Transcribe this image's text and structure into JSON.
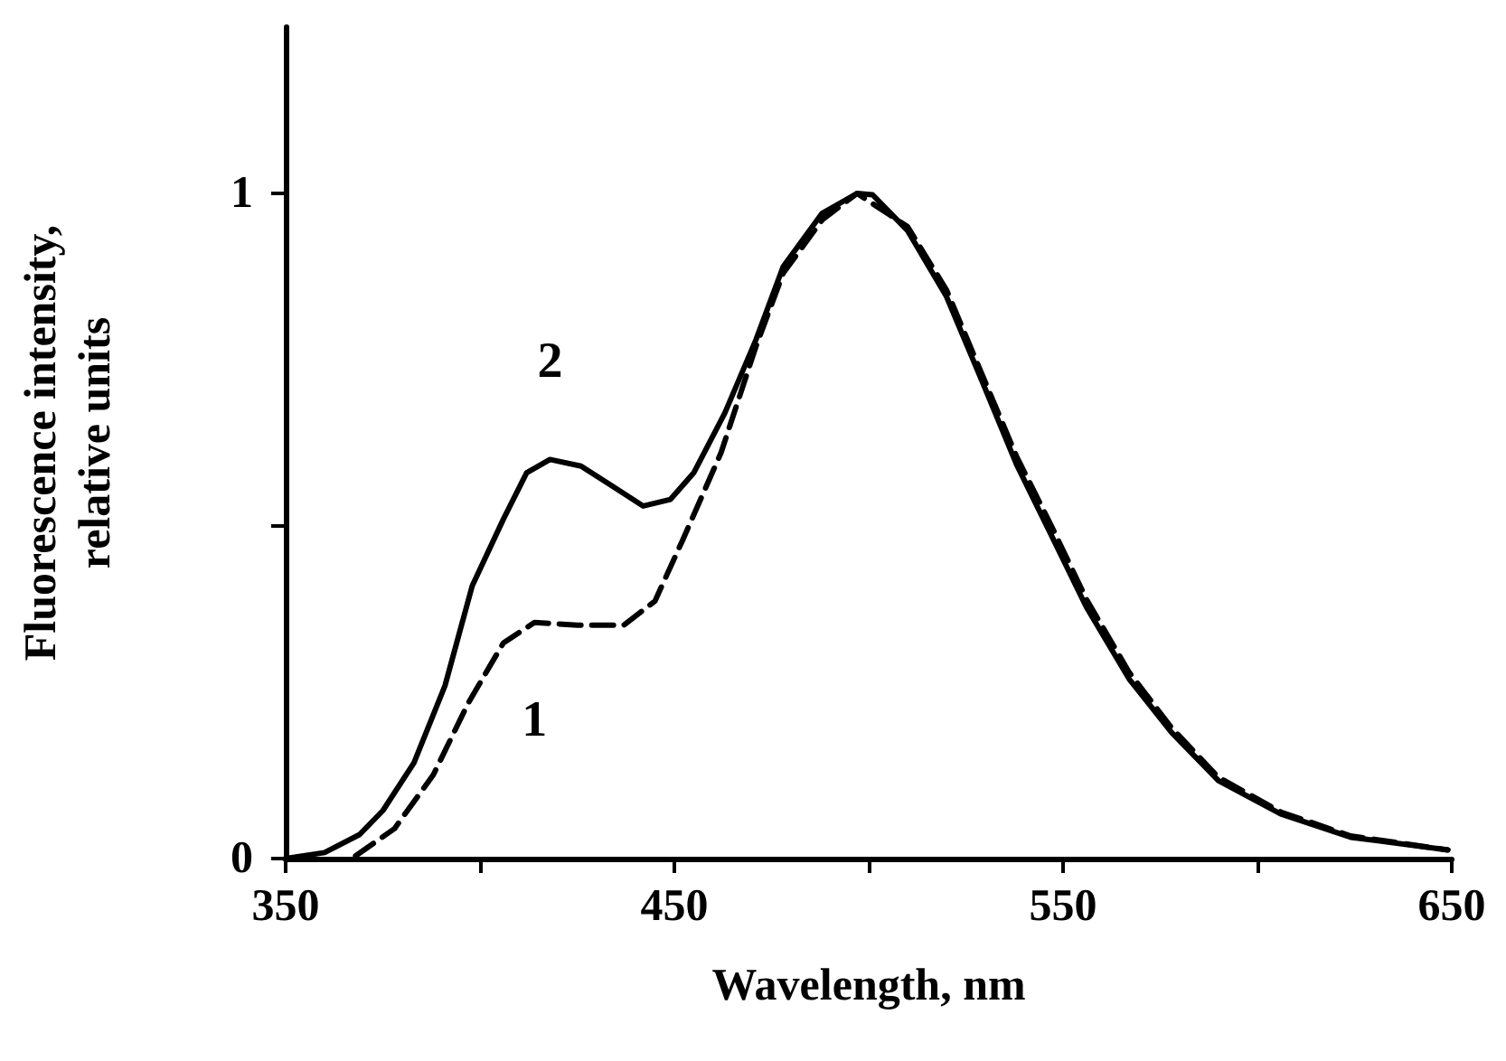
{
  "chart_data": {
    "type": "line",
    "xlabel": "Wavelength, nm",
    "ylabel": "Fluorescence intensity,\nrelative units",
    "xlim": [
      350,
      650
    ],
    "xticks": [
      350,
      {
        "value": 400,
        "label": null
      },
      450,
      {
        "value": 500,
        "label": null
      },
      550,
      {
        "value": 600,
        "label": null
      },
      650
    ],
    "ylim": [
      0,
      1.25
    ],
    "yticks": [
      0,
      {
        "value": 0.5,
        "label": null
      },
      1
    ],
    "grid": false,
    "legend": false,
    "marker": "none",
    "series": [
      {
        "name": "1",
        "color": "#000000",
        "line_style": "dashed",
        "x": [
          368,
          378,
          388,
          397,
          406,
          414,
          425,
          437,
          445,
          452,
          462,
          471,
          478,
          488,
          497,
          510,
          520,
          529,
          538,
          547,
          556,
          567,
          578,
          590,
          606,
          624,
          649
        ],
        "values": [
          0.004,
          0.045,
          0.126,
          0.234,
          0.324,
          0.355,
          0.351,
          0.351,
          0.387,
          0.477,
          0.61,
          0.77,
          0.88,
          0.96,
          1.0,
          0.95,
          0.855,
          0.73,
          0.605,
          0.5,
          0.39,
          0.28,
          0.196,
          0.122,
          0.07,
          0.034,
          0.013
        ]
      },
      {
        "name": "2",
        "color": "#000000",
        "line_style": "solid",
        "x": [
          350,
          360,
          369,
          375,
          383,
          391,
          398,
          406,
          412,
          418,
          426,
          434,
          442,
          449,
          455,
          463,
          471,
          478,
          488,
          497,
          501,
          510,
          520,
          529,
          538,
          547,
          556,
          567,
          578,
          590,
          606,
          624,
          649
        ],
        "values": [
          0,
          0.009,
          0.036,
          0.072,
          0.144,
          0.26,
          0.41,
          0.51,
          0.58,
          0.6,
          0.59,
          0.56,
          0.53,
          0.54,
          0.58,
          0.67,
          0.78,
          0.89,
          0.97,
          1.0,
          0.998,
          0.944,
          0.845,
          0.72,
          0.593,
          0.486,
          0.378,
          0.27,
          0.189,
          0.117,
          0.067,
          0.032,
          0.013
        ]
      }
    ]
  }
}
